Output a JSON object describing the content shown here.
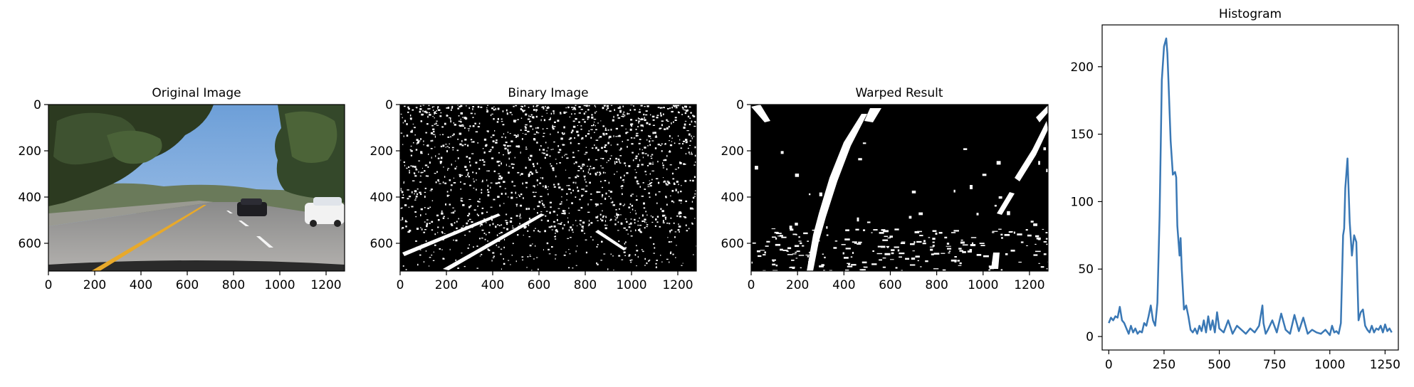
{
  "figure": {
    "panels": [
      {
        "id": "original",
        "title": "Original Image",
        "type": "image",
        "xticks": [
          "0",
          "200",
          "400",
          "600",
          "800",
          "1000",
          "1200"
        ],
        "yticks": [
          "0",
          "200",
          "400",
          "600"
        ]
      },
      {
        "id": "binary",
        "title": "Binary Image",
        "type": "image",
        "xticks": [
          "0",
          "200",
          "400",
          "600",
          "800",
          "1000",
          "1200"
        ],
        "yticks": [
          "0",
          "200",
          "400",
          "600"
        ]
      },
      {
        "id": "warped",
        "title": "Warped Result",
        "type": "image",
        "xticks": [
          "0",
          "200",
          "400",
          "600",
          "800",
          "1000",
          "1200"
        ],
        "yticks": [
          "0",
          "200",
          "400",
          "600"
        ]
      }
    ],
    "colors": {
      "line": "#3a78b5",
      "image_bg": "#000000",
      "lane_yellow": "#e8a92a"
    }
  },
  "chart_data": {
    "type": "line",
    "title": "Histogram",
    "xlabel": "",
    "ylabel": "",
    "xlim": [
      -30,
      1310
    ],
    "ylim": [
      -10,
      231
    ],
    "xticks": [
      0,
      250,
      500,
      750,
      1000,
      1250
    ],
    "yticks": [
      0,
      50,
      100,
      150,
      200
    ],
    "grid": false,
    "x": [
      0,
      10,
      20,
      30,
      40,
      50,
      60,
      70,
      80,
      90,
      100,
      110,
      120,
      130,
      140,
      150,
      160,
      170,
      180,
      190,
      200,
      210,
      220,
      230,
      240,
      250,
      260,
      265,
      270,
      280,
      290,
      300,
      305,
      310,
      320,
      325,
      330,
      340,
      350,
      360,
      370,
      380,
      390,
      400,
      410,
      420,
      430,
      440,
      450,
      460,
      470,
      480,
      490,
      500,
      520,
      540,
      560,
      580,
      600,
      620,
      640,
      660,
      680,
      695,
      700,
      710,
      720,
      740,
      760,
      780,
      800,
      820,
      840,
      860,
      880,
      900,
      920,
      940,
      960,
      980,
      1000,
      1010,
      1020,
      1030,
      1040,
      1050,
      1060,
      1065,
      1070,
      1080,
      1090,
      1100,
      1110,
      1120,
      1130,
      1140,
      1150,
      1160,
      1170,
      1180,
      1190,
      1200,
      1210,
      1220,
      1230,
      1240,
      1250,
      1260,
      1270,
      1280
    ],
    "y": [
      10,
      14,
      12,
      15,
      14,
      22,
      12,
      10,
      6,
      2,
      8,
      3,
      6,
      2,
      4,
      3,
      10,
      8,
      15,
      23,
      12,
      8,
      25,
      90,
      190,
      215,
      221,
      210,
      190,
      145,
      120,
      122,
      118,
      82,
      60,
      73,
      50,
      20,
      23,
      15,
      5,
      3,
      6,
      2,
      8,
      4,
      12,
      3,
      15,
      5,
      12,
      3,
      18,
      6,
      3,
      12,
      2,
      8,
      5,
      2,
      6,
      3,
      8,
      23,
      10,
      2,
      5,
      12,
      3,
      17,
      5,
      2,
      16,
      4,
      14,
      2,
      5,
      3,
      2,
      5,
      1,
      8,
      3,
      4,
      2,
      10,
      75,
      80,
      110,
      132,
      85,
      60,
      75,
      70,
      12,
      18,
      20,
      8,
      5,
      3,
      8,
      3,
      6,
      5,
      8,
      3,
      9,
      4,
      6,
      3
    ]
  }
}
